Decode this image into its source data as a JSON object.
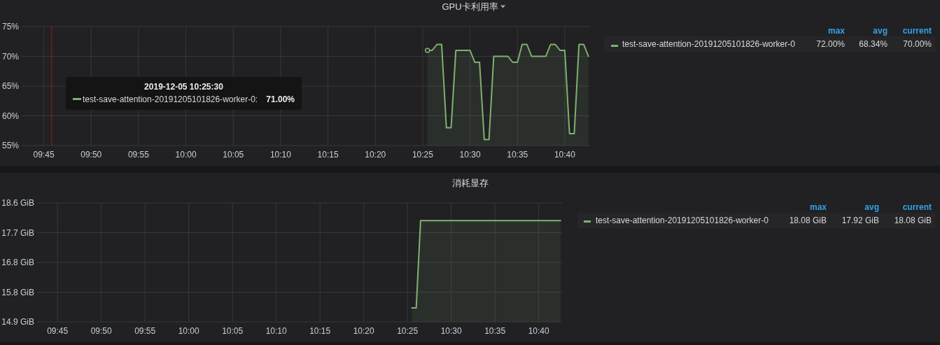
{
  "chart_data": [
    {
      "type": "area",
      "title": "GPU卡利用率",
      "x": [
        "2019-12-05T10:25:30",
        "2019-12-05T10:26:00",
        "2019-12-05T10:26:30",
        "2019-12-05T10:27:00",
        "2019-12-05T10:27:30",
        "2019-12-05T10:28:00",
        "2019-12-05T10:28:30",
        "2019-12-05T10:29:00",
        "2019-12-05T10:29:30",
        "2019-12-05T10:30:00",
        "2019-12-05T10:30:30",
        "2019-12-05T10:31:00",
        "2019-12-05T10:31:30",
        "2019-12-05T10:32:00",
        "2019-12-05T10:32:30",
        "2019-12-05T10:33:00",
        "2019-12-05T10:33:30",
        "2019-12-05T10:34:00",
        "2019-12-05T10:34:30",
        "2019-12-05T10:35:00",
        "2019-12-05T10:35:30",
        "2019-12-05T10:36:00",
        "2019-12-05T10:36:30",
        "2019-12-05T10:37:00",
        "2019-12-05T10:37:30",
        "2019-12-05T10:38:00",
        "2019-12-05T10:38:30",
        "2019-12-05T10:39:00",
        "2019-12-05T10:39:30",
        "2019-12-05T10:40:00",
        "2019-12-05T10:40:30",
        "2019-12-05T10:41:00",
        "2019-12-05T10:41:30",
        "2019-12-05T10:42:00",
        "2019-12-05T10:42:30"
      ],
      "series": [
        {
          "name": "test-save-attention-20191205101826-worker-0",
          "color": "#7eb26d",
          "values": [
            71,
            71,
            72,
            72,
            58,
            58,
            71,
            71,
            71,
            71,
            69,
            69,
            56,
            56,
            70,
            70,
            70,
            70,
            69,
            69,
            72,
            72,
            70,
            70,
            70,
            70,
            72,
            72,
            71,
            71,
            57,
            57,
            72,
            72,
            70
          ]
        },
        {
          "type": "scatter",
          "x": [
            "2019-12-05T10:25:30"
          ],
          "color": "#7eb26d",
          "marker": "circle",
          "values": [
            71
          ]
        }
      ],
      "xlim": [
        "2019-12-05T09:42:40",
        "2019-12-05T10:42:40"
      ],
      "xticks": [
        {
          "value": "2019-12-05T09:45",
          "label": "09:45"
        },
        {
          "value": "2019-12-05T09:50",
          "label": "09:50"
        },
        {
          "value": "2019-12-05T09:55",
          "label": "09:55"
        },
        {
          "value": "2019-12-05T10:00",
          "label": "10:00"
        },
        {
          "value": "2019-12-05T10:05",
          "label": "10:05"
        },
        {
          "value": "2019-12-05T10:10",
          "label": "10:10"
        },
        {
          "value": "2019-12-05T10:15",
          "label": "10:15"
        },
        {
          "value": "2019-12-05T10:20",
          "label": "10:20"
        },
        {
          "value": "2019-12-05T10:25",
          "label": "10:25"
        },
        {
          "value": "2019-12-05T10:30",
          "label": "10:30"
        },
        {
          "value": "2019-12-05T10:35",
          "label": "10:35"
        },
        {
          "value": "2019-12-05T10:40",
          "label": "10:40"
        }
      ],
      "ylim": [
        55,
        75
      ],
      "yticks": [
        {
          "value": 55,
          "label": "55%"
        },
        {
          "value": 60,
          "label": "60%"
        },
        {
          "value": 65,
          "label": "65%"
        },
        {
          "value": 70,
          "label": "70%"
        },
        {
          "value": 75,
          "label": "75%"
        }
      ],
      "grid": true,
      "legend": "right",
      "ref_lines": [
        {
          "axis": "x",
          "value": "2019-12-05T09:45:50",
          "color": "#a11c1c"
        }
      ],
      "annotations": [
        "2019-12-05 10:25:30\ntest-save-attention-20191205101826-worker-0:\n71.00%",
        "max",
        "avg",
        "current",
        "72.00%",
        "68.34%",
        "70.00%"
      ]
    },
    {
      "type": "area",
      "title": "消耗显存",
      "x": [
        "2019-12-05T10:25:30",
        "2019-12-05T10:26:00",
        "2019-12-05T10:26:30",
        "2019-12-05T10:42:30"
      ],
      "series": [
        {
          "name": "test-save-attention-20191205101826-worker-0",
          "color": "#7eb26d",
          "values": [
            15.35,
            15.35,
            18.08,
            18.08
          ]
        }
      ],
      "xlim": [
        "2019-12-05T09:42:40",
        "2019-12-05T10:42:40"
      ],
      "xticks": [
        {
          "value": "2019-12-05T09:45",
          "label": "09:45"
        },
        {
          "value": "2019-12-05T09:50",
          "label": "09:50"
        },
        {
          "value": "2019-12-05T09:55",
          "label": "09:55"
        },
        {
          "value": "2019-12-05T10:00",
          "label": "10:00"
        },
        {
          "value": "2019-12-05T10:05",
          "label": "10:05"
        },
        {
          "value": "2019-12-05T10:10",
          "label": "10:10"
        },
        {
          "value": "2019-12-05T10:15",
          "label": "10:15"
        },
        {
          "value": "2019-12-05T10:20",
          "label": "10:20"
        },
        {
          "value": "2019-12-05T10:25",
          "label": "10:25"
        },
        {
          "value": "2019-12-05T10:30",
          "label": "10:30"
        },
        {
          "value": "2019-12-05T10:35",
          "label": "10:35"
        },
        {
          "value": "2019-12-05T10:40",
          "label": "10:40"
        }
      ],
      "ylim": [
        14.91,
        18.63
      ],
      "yticks": [
        {
          "value": 14.91,
          "label": "14.9 GiB"
        },
        {
          "value": 15.84,
          "label": "15.8 GiB"
        },
        {
          "value": 16.77,
          "label": "16.8 GiB"
        },
        {
          "value": 17.7,
          "label": "17.7 GiB"
        },
        {
          "value": 18.63,
          "label": "18.6 GiB"
        }
      ],
      "grid": true,
      "legend": "right",
      "annotations": [
        "max",
        "avg",
        "current",
        "18.08 GiB",
        "17.92 GiB",
        "18.08 GiB"
      ]
    }
  ]
}
